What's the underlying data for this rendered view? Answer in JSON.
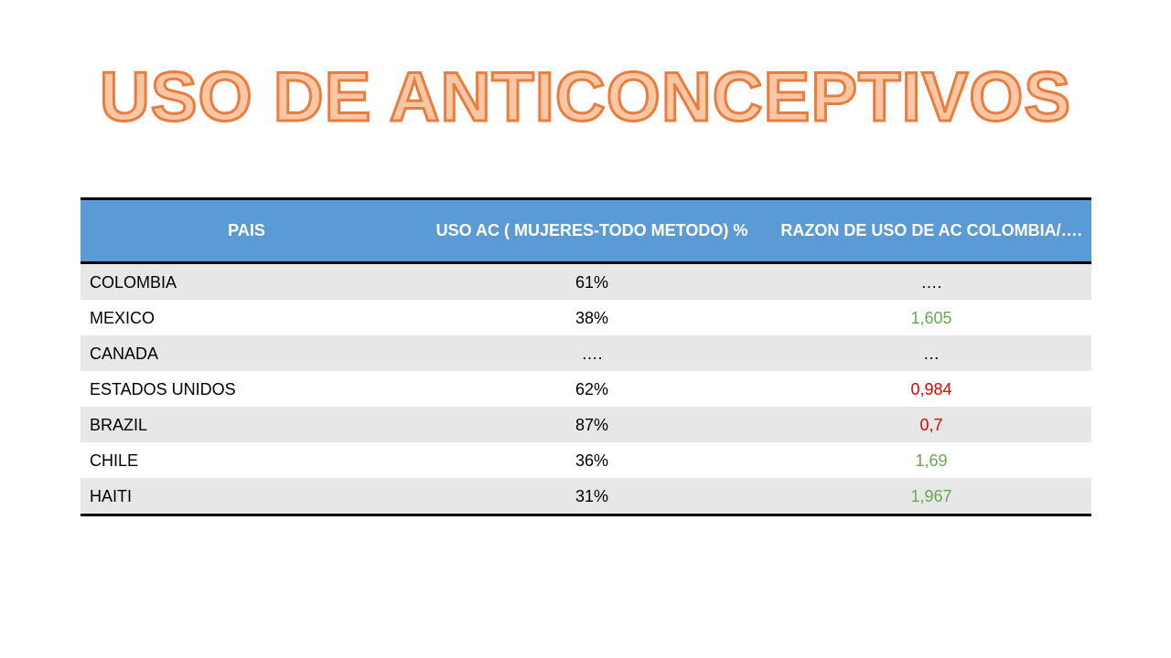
{
  "title": "USO DE ANTICONCEPTIVOS",
  "colors": {
    "title_fill": "#f8c7a6",
    "title_stroke": "#ec7c3c",
    "header_bg": "#5b9bd5",
    "shaded_row": "#e7e7e7",
    "favorable": "#6aa84f",
    "unfavorable": "#e60000"
  },
  "table": {
    "headers": [
      "PAIS",
      "USO AC ( MUJERES-TODO METODO) %",
      "RAZON DE USO DE AC COLOMBIA/…."
    ],
    "rows": [
      {
        "country": "COLOMBIA",
        "uso": "61%",
        "razon": "….",
        "razon_color": "black"
      },
      {
        "country": "MEXICO",
        "uso": "38%",
        "razon": "1,605",
        "razon_color": "green"
      },
      {
        "country": "CANADA",
        "uso": "….",
        "razon": "…",
        "razon_color": "black"
      },
      {
        "country": "ESTADOS UNIDOS",
        "uso": "62%",
        "razon": "0,984",
        "razon_color": "red"
      },
      {
        "country": "BRAZIL",
        "uso": "87%",
        "razon": "0,7",
        "razon_color": "red"
      },
      {
        "country": "CHILE",
        "uso": "36%",
        "razon": "1,69",
        "razon_color": "green"
      },
      {
        "country": "HAITI",
        "uso": "31%",
        "razon": "1,967",
        "razon_color": "green"
      }
    ]
  }
}
